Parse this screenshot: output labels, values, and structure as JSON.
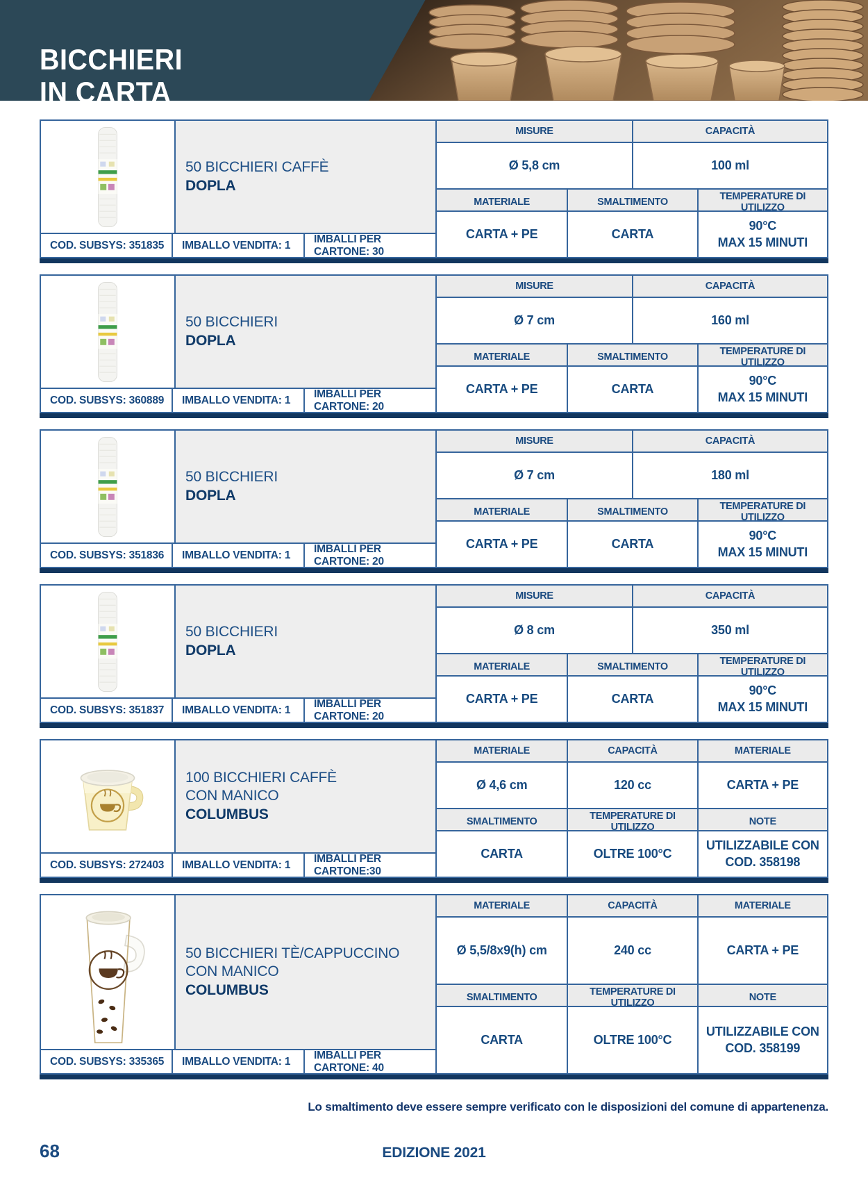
{
  "header": {
    "title": "BICCHIERI\nIN CARTA"
  },
  "colors": {
    "masthead_slate": "#2c4857",
    "border_blue": "#36659c",
    "text_blue": "#1a4a80",
    "divider_bar_navy": "#12365e",
    "header_cell_gray": "#ebebeb"
  },
  "products": [
    {
      "name": "50 BICCHIERI CAFFÈ",
      "brand": "DOPLA",
      "image": "sleeve",
      "code": "COD. SUBSYS: 351835",
      "pack": "IMBALLO VENDITA: 1",
      "carton": "IMBALLI PER CARTONE: 30",
      "table": {
        "top": {
          "headers": [
            "MISURE",
            "CAPACITÀ"
          ],
          "values": [
            "Ø 5,8 cm",
            "100 ml"
          ]
        },
        "bottom": {
          "headers": [
            "MATERIALE",
            "SMALTIMENTO",
            "TEMPERATURE DI UTILIZZO"
          ],
          "values": [
            "CARTA + PE",
            "CARTA",
            "90°C\nMAX 15 MINUTI"
          ]
        }
      }
    },
    {
      "name": "50 BICCHIERI",
      "brand": "DOPLA",
      "image": "sleeve",
      "code": "COD. SUBSYS: 360889",
      "pack": "IMBALLO VENDITA: 1",
      "carton": "IMBALLI PER CARTONE: 20",
      "table": {
        "top": {
          "headers": [
            "MISURE",
            "CAPACITÀ"
          ],
          "values": [
            "Ø 7 cm",
            "160 ml"
          ]
        },
        "bottom": {
          "headers": [
            "MATERIALE",
            "SMALTIMENTO",
            "TEMPERATURE DI UTILIZZO"
          ],
          "values": [
            "CARTA + PE",
            "CARTA",
            "90°C\nMAX 15 MINUTI"
          ]
        }
      }
    },
    {
      "name": "50 BICCHIERI",
      "brand": "DOPLA",
      "image": "sleeve",
      "code": "COD. SUBSYS: 351836",
      "pack": "IMBALLO VENDITA: 1",
      "carton": "IMBALLI PER CARTONE: 20",
      "table": {
        "top": {
          "headers": [
            "MISURE",
            "CAPACITÀ"
          ],
          "values": [
            "Ø 7 cm",
            "180 ml"
          ]
        },
        "bottom": {
          "headers": [
            "MATERIALE",
            "SMALTIMENTO",
            "TEMPERATURE DI UTILIZZO"
          ],
          "values": [
            "CARTA + PE",
            "CARTA",
            "90°C\nMAX 15 MINUTI"
          ]
        }
      }
    },
    {
      "name": "50 BICCHIERI",
      "brand": "DOPLA",
      "image": "sleeve",
      "code": "COD. SUBSYS: 351837",
      "pack": "IMBALLO VENDITA: 1",
      "carton": "IMBALLI PER CARTONE: 20",
      "table": {
        "top": {
          "headers": [
            "MISURE",
            "CAPACITÀ"
          ],
          "values": [
            "Ø 8 cm",
            "350 ml"
          ]
        },
        "bottom": {
          "headers": [
            "MATERIALE",
            "SMALTIMENTO",
            "TEMPERATURE DI UTILIZZO"
          ],
          "values": [
            "CARTA + PE",
            "CARTA",
            "90°C\nMAX 15 MINUTI"
          ]
        }
      }
    },
    {
      "name": "100 BICCHIERI CAFFÈ\nCON MANICO",
      "brand": "COLUMBUS",
      "image": "cup-small",
      "code": "COD. SUBSYS: 272403",
      "pack": "IMBALLO VENDITA: 1",
      "carton": "IMBALLI PER CARTONE:30",
      "table": {
        "top": {
          "headers": [
            "MATERIALE",
            "CAPACITÀ",
            "MATERIALE"
          ],
          "values": [
            "Ø 4,6 cm",
            "120 cc",
            "CARTA + PE"
          ]
        },
        "bottom": {
          "headers": [
            "SMALTIMENTO",
            "TEMPERATURE DI UTILIZZO",
            "NOTE"
          ],
          "values": [
            "CARTA",
            "OLTRE 100°C",
            "UTILIZZABILE CON\nCOD. 358198"
          ]
        }
      }
    },
    {
      "name": "50 BICCHIERI TÈ/CAPPUCCINO\nCON MANICO",
      "brand": "COLUMBUS",
      "image": "cup-tall",
      "tall": true,
      "code": "COD. SUBSYS: 335365",
      "pack": "IMBALLO VENDITA: 1",
      "carton": "IMBALLI PER CARTONE: 40",
      "table": {
        "top": {
          "headers": [
            "MATERIALE",
            "CAPACITÀ",
            "MATERIALE"
          ],
          "values": [
            "Ø 5,5/8x9(h) cm",
            "240 cc",
            "CARTA + PE"
          ]
        },
        "bottom": {
          "headers": [
            "SMALTIMENTO",
            "TEMPERATURE DI UTILIZZO",
            "NOTE"
          ],
          "values": [
            "CARTA",
            "OLTRE 100°C",
            "UTILIZZABILE CON\nCOD. 358199"
          ]
        }
      }
    }
  ],
  "footer": {
    "note": "Lo smaltimento deve essere sempre verificato con le disposizioni del comune di appartenenza.",
    "page_number": "68",
    "edition": "EDIZIONE 2021"
  }
}
